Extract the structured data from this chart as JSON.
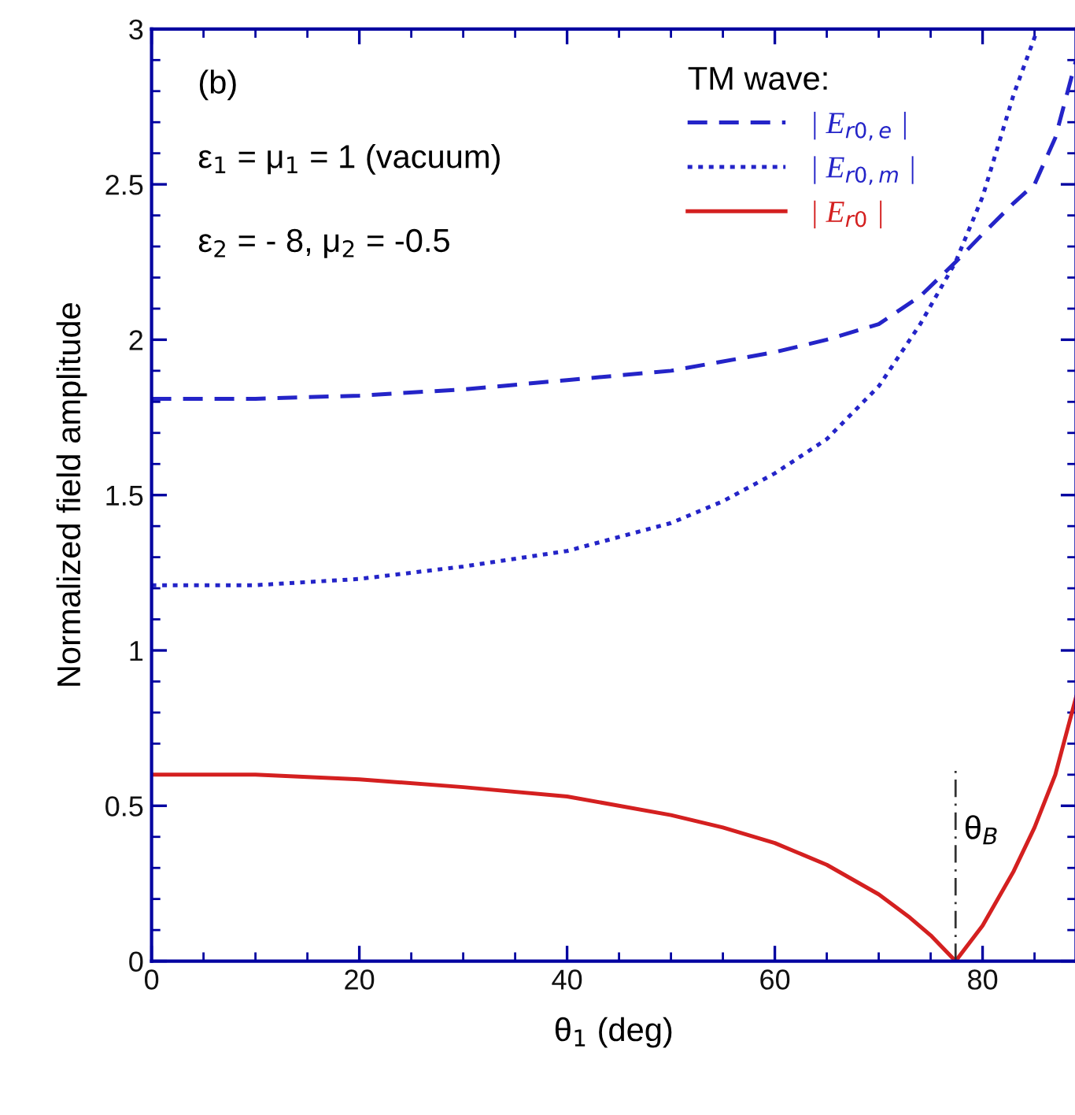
{
  "chart_data": {
    "type": "line",
    "xlabel": "θ$_{1}$ (deg)",
    "ylabel": "Normalized field amplitude",
    "legend_title": "TM wave:",
    "xlim": [
      0,
      89
    ],
    "ylim": [
      0,
      3
    ],
    "xticks": [
      0,
      20,
      40,
      60,
      80
    ],
    "yticks": [
      0,
      {
        "value": 0.5,
        "label": "0.5"
      },
      1,
      {
        "value": 1.5,
        "label": "1.5"
      },
      2,
      {
        "value": 2.5,
        "label": "2.5"
      },
      3
    ],
    "grid": false,
    "legend": "top right",
    "series": [
      {
        "name": "| E$_{r0,e}$ |",
        "color": "#2424c8",
        "line_style": "dashed",
        "x": [
          0,
          10,
          20,
          30,
          40,
          50,
          60,
          65,
          70,
          74,
          77.4,
          80,
          83,
          85,
          87,
          89
        ],
        "values": [
          1.81,
          1.81,
          1.82,
          1.84,
          1.87,
          1.9,
          1.96,
          2.0,
          2.05,
          2.14,
          2.25,
          2.34,
          2.44,
          2.5,
          2.65,
          2.9
        ]
      },
      {
        "name": "| E$_{r0,m}$ |",
        "color": "#2424c8",
        "line_style": "dotted",
        "x": [
          0,
          10,
          20,
          30,
          40,
          50,
          55,
          60,
          65,
          70,
          74,
          77.4,
          80,
          83,
          85.3
        ],
        "values": [
          1.21,
          1.21,
          1.23,
          1.27,
          1.32,
          1.41,
          1.48,
          1.57,
          1.68,
          1.85,
          2.05,
          2.25,
          2.46,
          2.79,
          3.0
        ]
      },
      {
        "name": "| E$_{r0}$ |",
        "color": "#d42020",
        "line_style": "solid",
        "x": [
          0,
          10,
          20,
          30,
          40,
          50,
          55,
          60,
          65,
          70,
          73,
          75,
          77.4,
          80,
          83,
          85,
          87,
          89
        ],
        "values": [
          0.6,
          0.6,
          0.585,
          0.56,
          0.53,
          0.47,
          0.43,
          0.38,
          0.31,
          0.215,
          0.14,
          0.083,
          0,
          0.114,
          0.29,
          0.43,
          0.6,
          0.85
        ]
      }
    ],
    "ref_lines": [
      {
        "axis": "x",
        "value": 77.4,
        "label": "θ$_{B}$",
        "color": "#333333",
        "line_style": "dashdot"
      }
    ],
    "annotations": [
      "(b)",
      "ε$_{1}$ = μ$_{1}$ = 1 (vacuum)",
      "ε$_{2}$ = - 8, μ$_{2}$ = -0.5"
    ]
  }
}
